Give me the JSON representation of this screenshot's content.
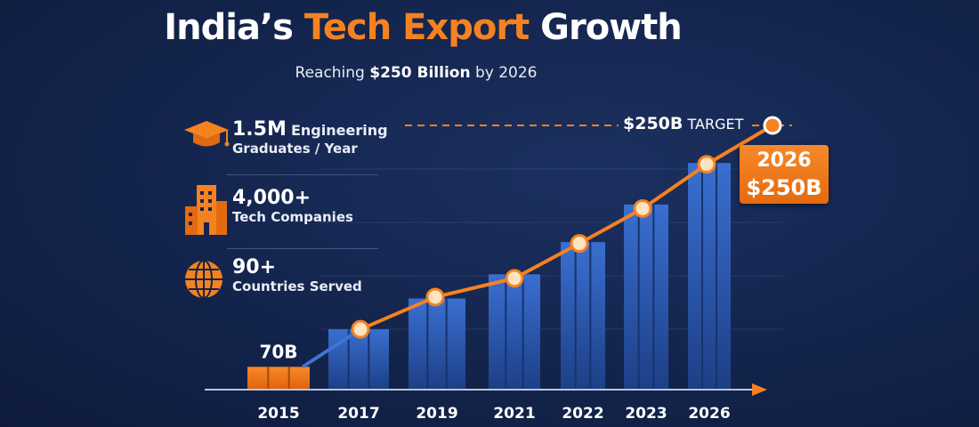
{
  "header": {
    "title_part1": "India’s ",
    "title_highlight": "Tech Export",
    "title_part2": " Growth",
    "subtitle_pre": "Reaching ",
    "subtitle_bold": "$250 Billion",
    "subtitle_post": " by 2026"
  },
  "stats": [
    {
      "icon": "graduation-cap-icon",
      "value": "1.5M",
      "label_inline": "Engineering",
      "label": "Graduates / Year"
    },
    {
      "icon": "buildings-icon",
      "value": "4,000+",
      "label": "Tech Companies"
    },
    {
      "icon": "globe-icon",
      "value": "90+",
      "label": "Countries Served"
    }
  ],
  "colors": {
    "accent": "#f58220",
    "bar": "#2f5fb8",
    "background": "#13244c"
  },
  "chart_data": {
    "type": "bar",
    "title": "",
    "xlabel": "",
    "ylabel": "",
    "categories": [
      "2015",
      "2017",
      "2019",
      "2021",
      "2022",
      "2023",
      "2026"
    ],
    "values": [
      70,
      98,
      121,
      139,
      163,
      191,
      222
    ],
    "line_values": [
      70,
      98,
      122,
      136,
      162,
      188,
      221
    ],
    "bar_label": "70B",
    "ylim": [
      53,
      250
    ],
    "grid": true,
    "target": {
      "value": 250,
      "value_label": "$250B",
      "label": "TARGET"
    },
    "callout": {
      "year": "2026",
      "value": "$250B"
    }
  }
}
